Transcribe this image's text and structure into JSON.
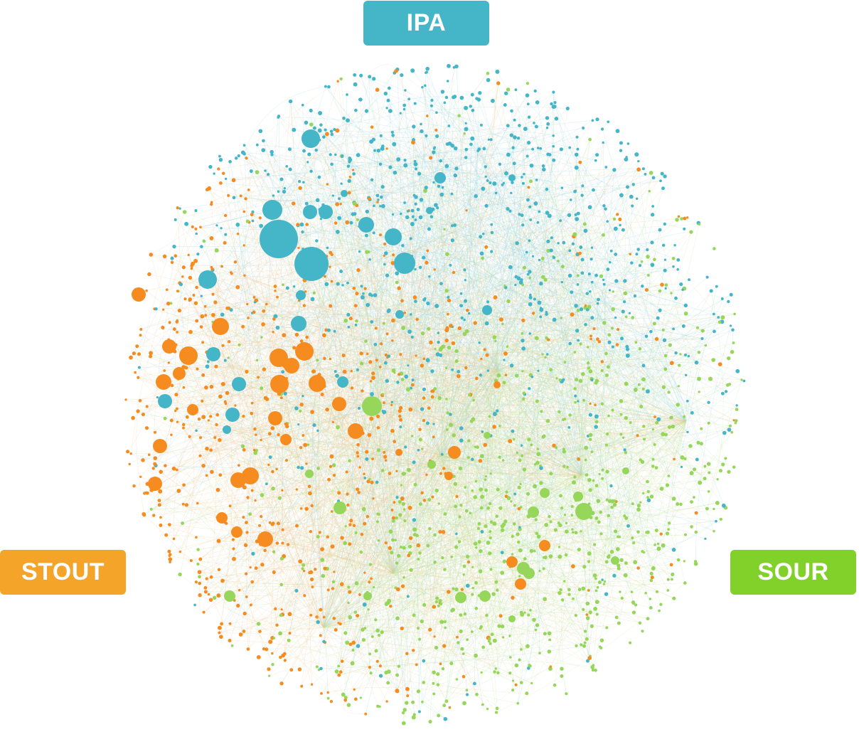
{
  "clusters": {
    "ipa": {
      "label": "IPA",
      "color": "#45b5c8"
    },
    "stout": {
      "label": "STOUT",
      "color": "#f5a42a"
    },
    "sour": {
      "label": "SOUR",
      "color": "#82d12b"
    }
  },
  "node_colors": {
    "ipa": "#45b5c8",
    "stout": "#f68b1f",
    "sour": "#96d65a"
  },
  "edge_colors": {
    "ipa": "#8fd0dc",
    "stout": "#f5c08a",
    "sour": "#bfe39a"
  }
}
